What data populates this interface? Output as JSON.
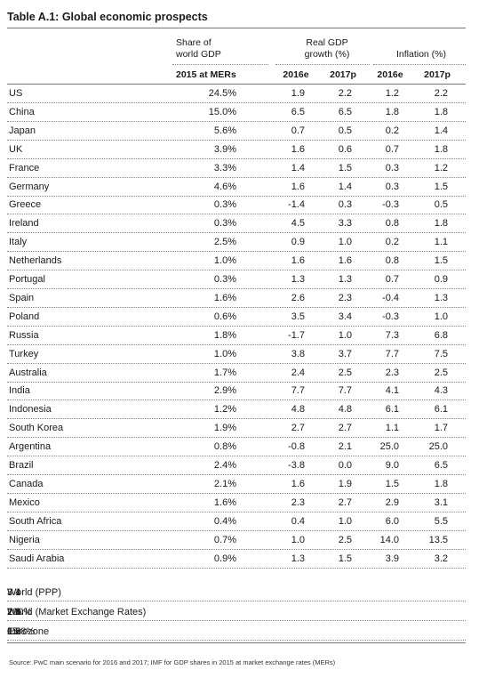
{
  "title": "Table A.1: Global economic prospects",
  "headers": {
    "share_line1": "Share of",
    "share_line2": "world GDP",
    "share_sub": "2015 at MERs",
    "gdp_line1": "Real GDP",
    "gdp_line2": "growth (%)",
    "gdp_2016": "2016e",
    "gdp_2017": "2017p",
    "inf_label": "Inflation (%)",
    "inf_2016": "2016e",
    "inf_2017": "2017p"
  },
  "rows": [
    {
      "country": "US",
      "share": "24.5%",
      "g16": "1.9",
      "g17": "2.2",
      "i16": "1.2",
      "i17": "2.2"
    },
    {
      "country": "China",
      "share": "15.0%",
      "g16": "6.5",
      "g17": "6.5",
      "i16": "1.8",
      "i17": "1.8"
    },
    {
      "country": "Japan",
      "share": "5.6%",
      "g16": "0.7",
      "g17": "0.5",
      "i16": "0.2",
      "i17": "1.4"
    },
    {
      "country": "UK",
      "share": "3.9%",
      "g16": "1.6",
      "g17": "0.6",
      "i16": "0.7",
      "i17": "1.8"
    },
    {
      "country": "France",
      "share": "3.3%",
      "g16": "1.4",
      "g17": "1.5",
      "i16": "0.3",
      "i17": "1.2"
    },
    {
      "country": "Germany",
      "share": "4.6%",
      "g16": "1.6",
      "g17": "1.4",
      "i16": "0.3",
      "i17": "1.5"
    },
    {
      "country": "Greece",
      "share": "0.3%",
      "g16": "-1.4",
      "g17": "0.3",
      "i16": "-0.3",
      "i17": "0.5"
    },
    {
      "country": "Ireland",
      "share": "0.3%",
      "g16": "4.5",
      "g17": "3.3",
      "i16": "0.8",
      "i17": "1.8"
    },
    {
      "country": "Italy",
      "share": "2.5%",
      "g16": "0.9",
      "g17": "1.0",
      "i16": "0.2",
      "i17": "1.1"
    },
    {
      "country": "Netherlands",
      "share": "1.0%",
      "g16": "1.6",
      "g17": "1.6",
      "i16": "0.8",
      "i17": "1.5"
    },
    {
      "country": "Portugal",
      "share": "0.3%",
      "g16": "1.3",
      "g17": "1.3",
      "i16": "0.7",
      "i17": "0.9"
    },
    {
      "country": "Spain",
      "share": "1.6%",
      "g16": "2.6",
      "g17": "2.3",
      "i16": "-0.4",
      "i17": "1.3"
    },
    {
      "country": "Poland",
      "share": "0.6%",
      "g16": "3.5",
      "g17": "3.4",
      "i16": "-0.3",
      "i17": "1.0"
    },
    {
      "country": "Russia",
      "share": "1.8%",
      "g16": "-1.7",
      "g17": "1.0",
      "i16": "7.3",
      "i17": "6.8"
    },
    {
      "country": "Turkey",
      "share": "1.0%",
      "g16": "3.8",
      "g17": "3.7",
      "i16": "7.7",
      "i17": "7.5"
    },
    {
      "country": "Australia",
      "share": "1.7%",
      "g16": "2.4",
      "g17": "2.5",
      "i16": "2.3",
      "i17": "2.5"
    },
    {
      "country": "India",
      "share": "2.9%",
      "g16": "7.7",
      "g17": "7.7",
      "i16": "4.1",
      "i17": "4.3"
    },
    {
      "country": "Indonesia",
      "share": "1.2%",
      "g16": "4.8",
      "g17": "4.8",
      "i16": "6.1",
      "i17": "6.1"
    },
    {
      "country": "South Korea",
      "share": "1.9%",
      "g16": "2.7",
      "g17": "2.7",
      "i16": "1.1",
      "i17": "1.7"
    },
    {
      "country": "Argentina",
      "share": "0.8%",
      "g16": "-0.8",
      "g17": "2.1",
      "i16": "25.0",
      "i17": "25.0"
    },
    {
      "country": "Brazil",
      "share": "2.4%",
      "g16": "-3.8",
      "g17": "0.0",
      "i16": "9.0",
      "i17": "6.5"
    },
    {
      "country": "Canada",
      "share": "2.1%",
      "g16": "1.6",
      "g17": "1.9",
      "i16": "1.5",
      "i17": "1.8"
    },
    {
      "country": "Mexico",
      "share": "1.6%",
      "g16": "2.3",
      "g17": "2.7",
      "i16": "2.9",
      "i17": "3.1"
    },
    {
      "country": "South Africa",
      "share": "0.4%",
      "g16": "0.4",
      "g17": "1.0",
      "i16": "6.0",
      "i17": "5.5"
    },
    {
      "country": "Nigeria",
      "share": "0.7%",
      "g16": "1.0",
      "g17": "2.5",
      "i16": "14.0",
      "i17": "13.5"
    },
    {
      "country": "Saudi Arabia",
      "share": "0.9%",
      "g16": "1.3",
      "g17": "1.5",
      "i16": "3.9",
      "i17": "3.2"
    }
  ],
  "summary_rows": [
    {
      "country": "World (PPP)",
      "share": "",
      "g16": "3.1",
      "g17": "3.4",
      "i16": "",
      "i17": ""
    },
    {
      "country": "World (Market Exchange Rates)",
      "share": "100%",
      "g16": "2.6",
      "g17": "2.8",
      "i16": "2.1",
      "i17": "2.6"
    },
    {
      "country": "Eurozone",
      "share": "15.8%",
      "g16": "1.6",
      "g17": "1.5",
      "i16": "0.2",
      "i17": "1.3"
    }
  ],
  "source": "Source: PwC main scenario for 2016 and 2017; IMF for GDP shares in 2015 at market exchange rates (MERs)"
}
